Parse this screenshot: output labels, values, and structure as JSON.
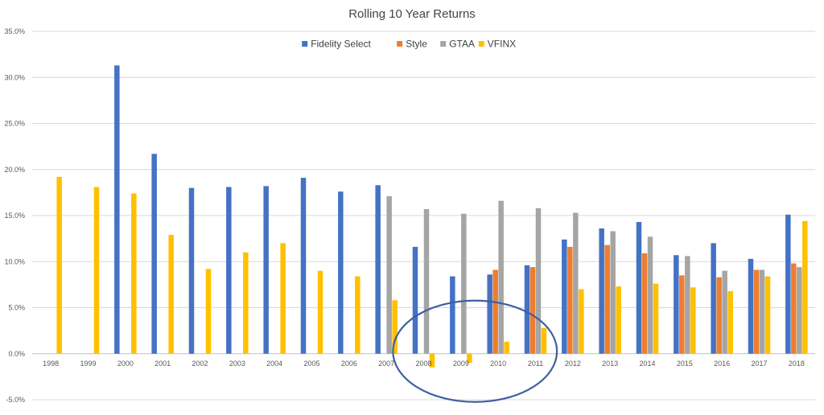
{
  "chart_data": {
    "type": "bar",
    "title": "Rolling 10 Year Returns",
    "xlabel": "",
    "ylabel": "",
    "categories": [
      "1998",
      "1999",
      "2000",
      "2001",
      "2002",
      "2003",
      "2004",
      "2005",
      "2006",
      "2007",
      "2008",
      "2009",
      "2010",
      "2011",
      "2012",
      "2013",
      "2014",
      "2015",
      "2016",
      "2017",
      "2018"
    ],
    "y_ticks": [
      "-5.0%",
      "0.0%",
      "5.0%",
      "10.0%",
      "15.0%",
      "20.0%",
      "25.0%",
      "30.0%",
      "35.0%"
    ],
    "ylim": [
      -5,
      35
    ],
    "y_unit": "%",
    "grid": true,
    "legend_position": "top",
    "series": [
      {
        "name": "Fidelity Select",
        "color": "#4472C4",
        "values": [
          null,
          null,
          31.3,
          21.7,
          18.0,
          18.1,
          18.2,
          19.1,
          17.6,
          18.3,
          11.6,
          8.4,
          8.6,
          9.6,
          12.4,
          13.6,
          14.3,
          10.7,
          12.0,
          10.3,
          15.1
        ]
      },
      {
        "name": "Style",
        "color": "#ED7D31",
        "values": [
          null,
          null,
          null,
          null,
          null,
          null,
          null,
          null,
          null,
          null,
          null,
          null,
          9.1,
          9.4,
          11.6,
          11.8,
          10.9,
          8.5,
          8.3,
          9.1,
          9.8
        ]
      },
      {
        "name": "GTAA",
        "color": "#A5A5A5",
        "values": [
          null,
          null,
          null,
          null,
          null,
          null,
          null,
          null,
          null,
          17.1,
          15.7,
          15.2,
          16.6,
          15.8,
          15.3,
          13.3,
          12.7,
          10.6,
          9.0,
          9.1,
          9.4
        ]
      },
      {
        "name": "VFINX",
        "color": "#FFC000",
        "values": [
          19.2,
          18.1,
          17.4,
          12.9,
          9.2,
          11.0,
          12.0,
          9.0,
          8.4,
          5.8,
          -1.5,
          -1.0,
          1.3,
          2.8,
          7.0,
          7.3,
          7.6,
          7.2,
          6.8,
          8.4,
          14.4
        ]
      }
    ],
    "annotations": [
      {
        "type": "ellipse",
        "outline_color": "#3F5FA0",
        "around_categories": [
          "2008",
          "2009",
          "2010",
          "2011"
        ]
      }
    ]
  }
}
